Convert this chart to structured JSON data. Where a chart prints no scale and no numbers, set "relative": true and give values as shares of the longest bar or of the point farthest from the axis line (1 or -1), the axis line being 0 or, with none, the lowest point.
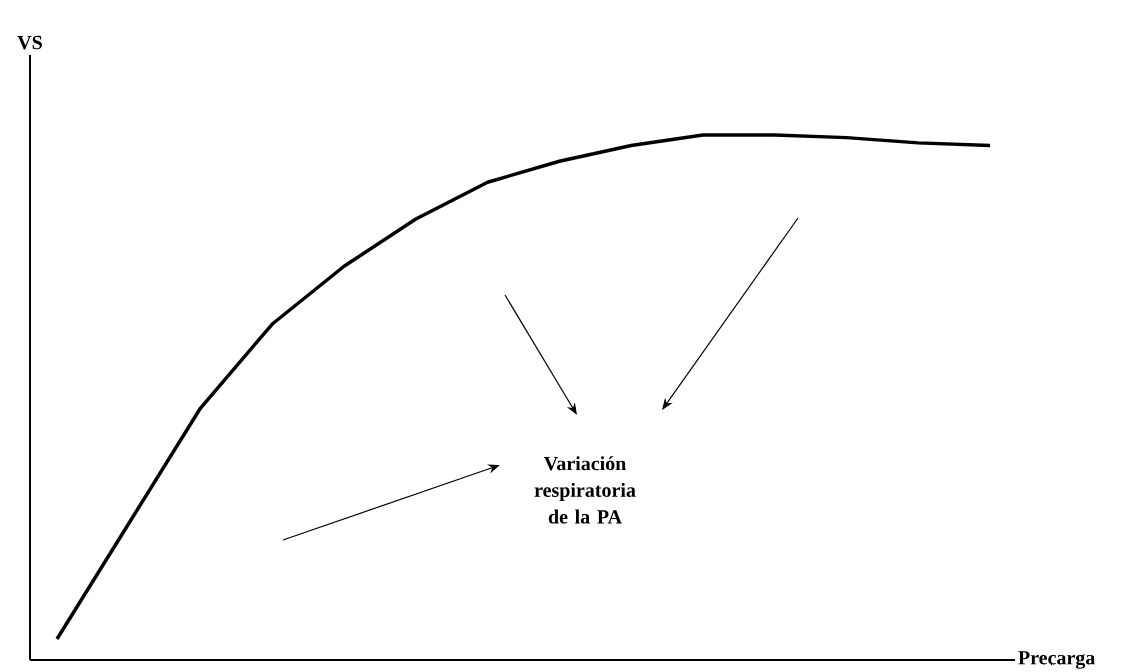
{
  "chart_data": {
    "type": "line",
    "relative": true,
    "xlabel": "Precarga",
    "ylabel": "VS",
    "categories": [
      null,
      null,
      null,
      null,
      null,
      null,
      null,
      null,
      null,
      null,
      null,
      null,
      null,
      null
    ],
    "series": [
      {
        "color": "#000000",
        "values": [
          0.04,
          0.26,
          0.48,
          0.64,
          0.75,
          0.84,
          0.91,
          0.95,
          0.98,
          1.0,
          1.0,
          0.995,
          0.985,
          0.98
        ]
      }
    ],
    "marker": "none",
    "line_style": "solid",
    "annotations": [
      "Variación respiratoria de la PA"
    ]
  }
}
